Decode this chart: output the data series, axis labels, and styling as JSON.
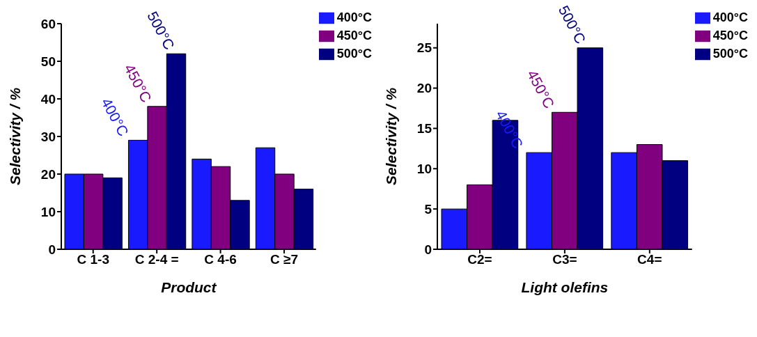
{
  "chart_data": [
    {
      "type": "bar",
      "xlabel": "Product",
      "ylabel": "Selectivity / %",
      "categories": [
        "C 1-3",
        "C 2-4 =",
        "C 4-6",
        "C ≥7"
      ],
      "series": [
        {
          "name": "400°C",
          "color": "#1a1aff",
          "values": [
            20,
            29,
            24,
            27
          ]
        },
        {
          "name": "450°C",
          "color": "#800080",
          "values": [
            20,
            38,
            22,
            20
          ]
        },
        {
          "name": "500°C",
          "color": "#000080",
          "values": [
            19,
            52,
            13,
            16
          ]
        }
      ],
      "ylim": [
        0,
        60
      ],
      "yticks": [
        0,
        10,
        20,
        30,
        40,
        50,
        60
      ],
      "grid": false,
      "legend": "top right",
      "annotations": [
        "400°C",
        "450°C",
        "500°C"
      ]
    },
    {
      "type": "bar",
      "xlabel": "Light olefins",
      "ylabel": "Selectivity / %",
      "categories": [
        "C2=",
        "C3=",
        "C4="
      ],
      "series": [
        {
          "name": "400°C",
          "color": "#1a1aff",
          "values": [
            5,
            12,
            12
          ]
        },
        {
          "name": "450°C",
          "color": "#800080",
          "values": [
            8,
            17,
            13
          ]
        },
        {
          "name": "500°C",
          "color": "#000080",
          "values": [
            16,
            25,
            11
          ]
        }
      ],
      "ylim": [
        0,
        28
      ],
      "yticks": [
        0,
        5,
        10,
        15,
        20,
        25
      ],
      "grid": false,
      "legend": "top right",
      "annotations": [
        "400°C",
        "450°C",
        "500°C"
      ]
    }
  ]
}
